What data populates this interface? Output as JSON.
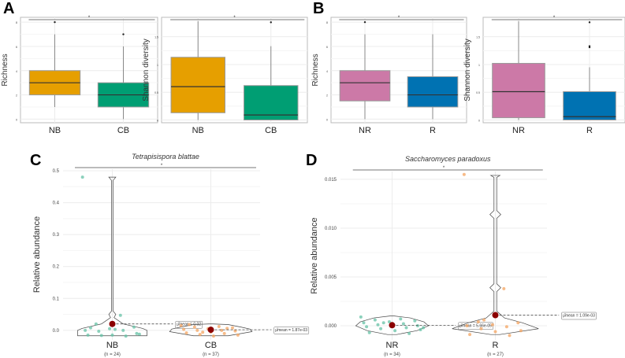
{
  "panel_labels": [
    "A",
    "B",
    "C",
    "D"
  ],
  "colors": {
    "orange": "#E69F00",
    "green": "#009E73",
    "pink": "#CC79A7",
    "blue": "#0072B2",
    "mean": "#8B0000",
    "ptGreen": "#66C2A5",
    "ptOrange": "#F4A460"
  },
  "chart_data": [
    {
      "id": "A1",
      "type": "box",
      "ylabel": "Richness",
      "yticks": [
        0,
        2,
        4,
        6,
        8
      ],
      "ylim": [
        -0.3,
        8.4
      ],
      "sig": "*",
      "categories": [
        "NB",
        "CB"
      ],
      "boxes": [
        {
          "q1": 2,
          "median": 3,
          "q3": 4,
          "lo": 1,
          "hi": 7,
          "outliers": [
            8
          ],
          "color": "#E69F00"
        },
        {
          "q1": 1,
          "median": 2,
          "q3": 3,
          "lo": 0,
          "hi": 6,
          "outliers": [
            7
          ],
          "color": "#009E73"
        }
      ]
    },
    {
      "id": "A2",
      "type": "box",
      "ylabel": "Shannon diversity",
      "yticks": [
        0.0,
        0.5,
        1.0,
        1.5
      ],
      "ylim": [
        -0.05,
        1.85
      ],
      "sig": "*",
      "categories": [
        "NB",
        "CB"
      ],
      "boxes": [
        {
          "q1": 0.13,
          "median": 0.6,
          "q3": 1.13,
          "lo": 0,
          "hi": 1.78,
          "outliers": [],
          "color": "#E69F00"
        },
        {
          "q1": 0,
          "median": 0.09,
          "q3": 0.62,
          "lo": 0,
          "hi": 1.33,
          "outliers": [
            1.76
          ],
          "color": "#009E73"
        }
      ]
    },
    {
      "id": "B1",
      "type": "box",
      "ylabel": "Richness",
      "yticks": [
        0,
        2,
        4,
        6,
        8
      ],
      "ylim": [
        -0.3,
        8.4
      ],
      "sig": "*",
      "categories": [
        "NR",
        "R"
      ],
      "boxes": [
        {
          "q1": 1.5,
          "median": 3,
          "q3": 4,
          "lo": 0,
          "hi": 7,
          "outliers": [
            8
          ],
          "color": "#CC79A7"
        },
        {
          "q1": 1,
          "median": 2,
          "q3": 3.5,
          "lo": 0,
          "hi": 7,
          "outliers": [],
          "color": "#0072B2"
        }
      ]
    },
    {
      "id": "B2",
      "type": "box",
      "ylabel": "Shannon diversity",
      "yticks": [
        0.0,
        0.5,
        1.0,
        1.5
      ],
      "ylim": [
        -0.05,
        1.85
      ],
      "sig": "*",
      "categories": [
        "NR",
        "R"
      ],
      "boxes": [
        {
          "q1": 0.04,
          "median": 0.51,
          "q3": 1.02,
          "lo": 0,
          "hi": 1.78,
          "outliers": [],
          "color": "#CC79A7"
        },
        {
          "q1": 0,
          "median": 0.06,
          "q3": 0.51,
          "lo": 0,
          "hi": 0.95,
          "outliers": [
            1.31,
            1.33,
            1.76
          ],
          "color": "#0072B2"
        }
      ]
    },
    {
      "id": "C",
      "type": "violin",
      "title": "Tetrapisispora blattae",
      "ylabel": "Relative abundance",
      "yticks": [
        0.0,
        0.1,
        0.2,
        0.3,
        0.4,
        0.5
      ],
      "ytick_labels": [
        "0.0",
        "0.1",
        "0.2",
        "0.3",
        "0.4",
        "0.5"
      ],
      "ylim": [
        -0.03,
        0.505
      ],
      "sig": "*",
      "groups": [
        {
          "name": "NB",
          "n_label": "(n = 24)",
          "mean": 0.02,
          "mean_label": "μ̂mean = 0.02",
          "ptColor": "#66C2A5",
          "points": [
            0.48,
            0.047,
            0.02,
            0.01,
            0.005,
            0,
            0,
            -0.003,
            -0.01,
            -0.015,
            -0.015,
            -0.018,
            -0.016,
            -0.012,
            0.003,
            0.008
          ],
          "violin": [
            [
              -0.017,
              0.8
            ],
            [
              0.0,
              0.8
            ],
            [
              0.006,
              0.7
            ],
            [
              0.02,
              0.25
            ],
            [
              0.04,
              0.04
            ],
            [
              0.05,
              0.08
            ],
            [
              0.06,
              0.02
            ],
            [
              0.2,
              0.02
            ],
            [
              0.47,
              0.02
            ],
            [
              0.48,
              0.08
            ]
          ]
        },
        {
          "name": "CB",
          "n_label": "(n = 37)",
          "mean": 0.00187,
          "mean_label": "μ̂mean = 1.87e-03",
          "ptColor": "#F4A460",
          "points": [
            0.015,
            0.012,
            0.01,
            0.008,
            0.005,
            0.003,
            0,
            0,
            -0.002,
            -0.005,
            -0.008,
            -0.01,
            -0.013,
            -0.015,
            -0.018,
            0.018,
            0.006,
            -0.006
          ],
          "violin": [
            [
              -0.017,
              0.4
            ],
            [
              -0.01,
              0.7
            ],
            [
              -0.004,
              0.95
            ],
            [
              0.004,
              0.9
            ],
            [
              0.01,
              0.7
            ],
            [
              0.018,
              0.4
            ],
            [
              0.02,
              0.05
            ]
          ]
        }
      ]
    },
    {
      "id": "D",
      "type": "violin",
      "title": "Saccharomyces paradoxus",
      "ylabel": "Relative abundance",
      "yticks": [
        0.0,
        0.005,
        0.01,
        0.015
      ],
      "ytick_labels": [
        "0.000",
        "0.005",
        "0.010",
        "0.015"
      ],
      "ylim": [
        -0.00145,
        0.0158
      ],
      "sig": "*",
      "groups": [
        {
          "name": "NR",
          "n_label": "(n = 34)",
          "mean": 5.66e-05,
          "mean_label": "μ̂mean = 5.66e-05",
          "ptColor": "#66C2A5",
          "points": [
            0.0009,
            0.0007,
            0.0006,
            0.0005,
            0.0004,
            0.0003,
            0.0002,
            0.0001,
            0,
            0,
            -0.0001,
            -0.0002,
            -0.0003,
            -0.0004,
            -0.0005,
            -0.0007,
            -0.0008,
            0.0003,
            -0.0002
          ],
          "violin": [
            [
              -0.0009,
              0.1
            ],
            [
              -0.0005,
              0.55
            ],
            [
              0,
              0.8
            ],
            [
              0.0004,
              0.7
            ],
            [
              0.0008,
              0.4
            ],
            [
              0.001,
              0.05
            ]
          ]
        },
        {
          "name": "R",
          "n_label": "(n = 27)",
          "mean": 0.00109,
          "mean_label": "μ̂mean = 1.09e-03",
          "ptColor": "#F4A460",
          "points": [
            0.0155,
            0.0038,
            0.0004,
            0.0003,
            0.0001,
            0,
            -0.0001,
            -0.0003,
            -0.0005,
            -0.0006,
            -0.0009,
            -0.001,
            0.0006
          ],
          "violin": [
            [
              -0.0009,
              0.1
            ],
            [
              -0.0003,
              0.95
            ],
            [
              0.0003,
              0.6
            ],
            [
              0.0008,
              0.2
            ],
            [
              0.0015,
              0.03
            ],
            [
              0.0035,
              0.03
            ],
            [
              0.0039,
              0.12
            ],
            [
              0.0043,
              0.03
            ],
            [
              0.011,
              0.03
            ],
            [
              0.0114,
              0.12
            ],
            [
              0.0118,
              0.03
            ],
            [
              0.0152,
              0.03
            ],
            [
              0.0154,
              0.1
            ]
          ]
        }
      ]
    }
  ]
}
